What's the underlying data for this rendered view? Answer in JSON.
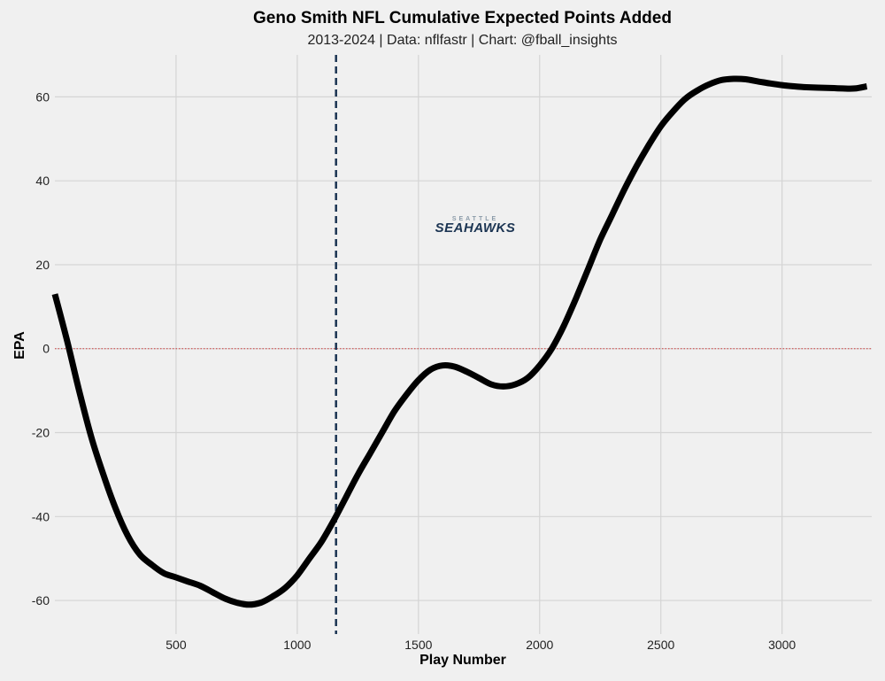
{
  "chart_data": {
    "type": "line",
    "title": "Geno Smith NFL Cumulative Expected Points Added",
    "subtitle": "2013-2024 | Data: nflfastr | Chart: @fball_insights",
    "xlabel": "Play Number",
    "ylabel": "EPA",
    "xlim": [
      0,
      3370
    ],
    "ylim": [
      -68,
      70
    ],
    "xticks": [
      500,
      1000,
      1500,
      2000,
      2500,
      3000
    ],
    "yticks": [
      -60,
      -40,
      -20,
      0,
      20,
      40,
      60
    ],
    "grid": true,
    "reference_line_y": 0,
    "reference_line_color": "#d04040",
    "vertical_marker_x": 1160,
    "vertical_marker_color": "#1c3553",
    "line_color": "#000000",
    "logo_text": "SEAHAWKS",
    "logo_subtext": "SEATTLE",
    "series": [
      {
        "x": [
          0,
          50,
          100,
          150,
          200,
          250,
          300,
          350,
          400,
          450,
          500,
          550,
          600,
          650,
          700,
          750,
          800,
          850,
          900,
          950,
          1000,
          1050,
          1100,
          1150,
          1200,
          1250,
          1300,
          1350,
          1400,
          1450,
          1500,
          1550,
          1600,
          1650,
          1700,
          1750,
          1800,
          1850,
          1900,
          1950,
          2000,
          2050,
          2100,
          2150,
          2200,
          2250,
          2300,
          2350,
          2400,
          2450,
          2500,
          2550,
          2600,
          2650,
          2700,
          2750,
          2800,
          2850,
          2900,
          2950,
          3000,
          3050,
          3100,
          3150,
          3200,
          3250,
          3300,
          3350
        ],
        "y": [
          13,
          2,
          -10,
          -21,
          -30,
          -38,
          -44.5,
          -49,
          -51.5,
          -53.5,
          -54.5,
          -55.5,
          -56.5,
          -58,
          -59.5,
          -60.5,
          -61,
          -60.5,
          -59,
          -57,
          -54,
          -50,
          -46,
          -41,
          -35.5,
          -30,
          -25,
          -20,
          -15,
          -11,
          -7.5,
          -5,
          -4,
          -4.3,
          -5.5,
          -7,
          -8.5,
          -9,
          -8.5,
          -7,
          -4,
          0,
          5.5,
          12,
          19,
          26,
          32,
          38,
          43.5,
          48.5,
          53,
          56.5,
          59.5,
          61.5,
          63,
          64,
          64.3,
          64.2,
          63.7,
          63.2,
          62.8,
          62.5,
          62.3,
          62.2,
          62.1,
          62,
          62,
          62.5
        ]
      }
    ]
  }
}
